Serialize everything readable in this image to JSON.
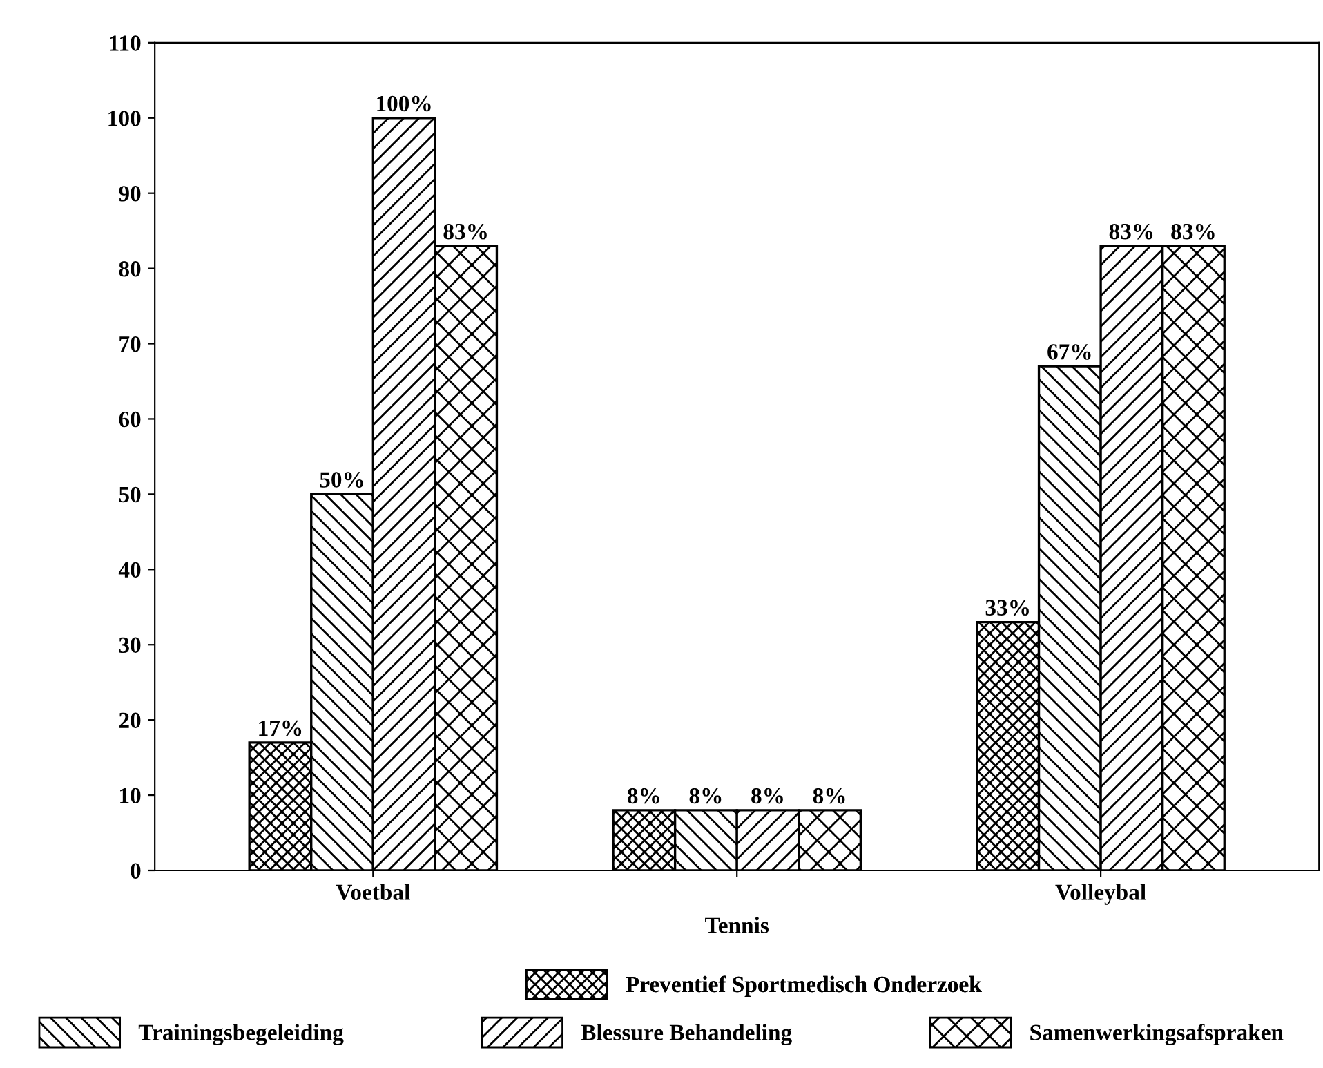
{
  "chart_data": {
    "type": "bar",
    "categories": [
      "Voetbal",
      "Tennis",
      "Volleybal"
    ],
    "series": [
      {
        "name": "Preventief Sportmedisch Onderzoek",
        "color": "#000000",
        "values": [
          17,
          8,
          33
        ],
        "value_labels": [
          "17%",
          "8%",
          "33%"
        ]
      },
      {
        "name": "Trainingsbegeleiding",
        "color": "#000000",
        "values": [
          50,
          8,
          67
        ],
        "value_labels": [
          "50%",
          "8%",
          "67%"
        ]
      },
      {
        "name": "Blessure Behandeling",
        "color": "#000000",
        "values": [
          100,
          8,
          83
        ],
        "value_labels": [
          "100%",
          "8%",
          "83%"
        ]
      },
      {
        "name": "Samenwerkingsafspraken",
        "color": "#000000",
        "values": [
          83,
          8,
          83
        ],
        "value_labels": [
          "83%",
          "8%",
          "83%"
        ]
      }
    ],
    "ylim": [
      0,
      110
    ],
    "yticks": [
      0,
      10,
      20,
      30,
      40,
      50,
      60,
      70,
      80,
      90,
      100,
      110
    ],
    "grid": false,
    "legend": "bottom"
  }
}
